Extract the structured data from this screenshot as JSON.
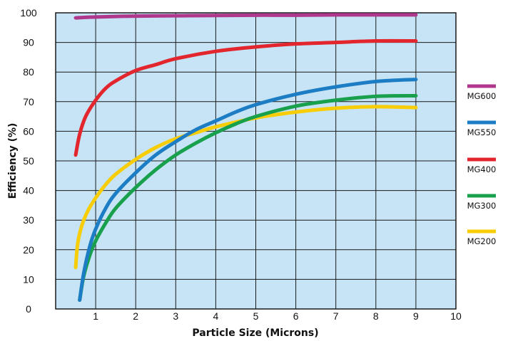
{
  "chart_data": {
    "type": "line",
    "title": "",
    "xlabel": "Particle Size (Microns)",
    "ylabel": "Efficiency (%)",
    "xlim": [
      0,
      10
    ],
    "ylim": [
      0,
      100
    ],
    "x_ticks": [
      "1",
      "2",
      "3",
      "4",
      "5",
      "6",
      "7",
      "8",
      "9",
      "10"
    ],
    "y_ticks": [
      "0",
      "10",
      "20",
      "30",
      "40",
      "50",
      "60",
      "70",
      "80",
      "90",
      "100"
    ],
    "grid": true,
    "plot_background": "#c6e4f5",
    "legend_position": "right",
    "series": [
      {
        "name": "MG600",
        "color": "#b0388c",
        "points": [
          [
            0.5,
            98.3
          ],
          [
            1,
            98.6
          ],
          [
            2,
            98.9
          ],
          [
            3,
            99.0
          ],
          [
            4,
            99.1
          ],
          [
            5,
            99.2
          ],
          [
            6,
            99.2
          ],
          [
            7,
            99.3
          ],
          [
            8,
            99.3
          ],
          [
            9,
            99.3
          ]
        ]
      },
      {
        "name": "MG550",
        "color": "#1c7cc4",
        "points": [
          [
            0.6,
            3
          ],
          [
            0.7,
            12
          ],
          [
            0.85,
            21
          ],
          [
            1,
            27
          ],
          [
            1.25,
            34
          ],
          [
            1.5,
            39
          ],
          [
            2,
            46
          ],
          [
            2.5,
            52
          ],
          [
            3,
            56.5
          ],
          [
            3.5,
            60.5
          ],
          [
            4,
            63.5
          ],
          [
            4.5,
            66.5
          ],
          [
            5,
            69
          ],
          [
            6,
            72.5
          ],
          [
            7,
            75
          ],
          [
            8,
            76.8
          ],
          [
            9,
            77.5
          ]
        ]
      },
      {
        "name": "MG400",
        "color": "#e3262e",
        "points": [
          [
            0.5,
            52
          ],
          [
            0.6,
            59
          ],
          [
            0.75,
            65
          ],
          [
            1,
            70.5
          ],
          [
            1.25,
            74.5
          ],
          [
            1.5,
            77
          ],
          [
            2,
            80.5
          ],
          [
            2.5,
            82.5
          ],
          [
            3,
            84.5
          ],
          [
            4,
            87
          ],
          [
            5,
            88.5
          ],
          [
            6,
            89.5
          ],
          [
            7,
            90
          ],
          [
            8,
            90.5
          ],
          [
            9,
            90.5
          ]
        ]
      },
      {
        "name": "MG300",
        "color": "#18a04c",
        "points": [
          [
            0.6,
            3
          ],
          [
            0.7,
            11
          ],
          [
            0.85,
            18
          ],
          [
            1,
            23
          ],
          [
            1.25,
            29
          ],
          [
            1.5,
            34
          ],
          [
            2,
            41
          ],
          [
            2.5,
            47
          ],
          [
            3,
            52
          ],
          [
            3.5,
            56
          ],
          [
            4,
            59.5
          ],
          [
            4.5,
            62.5
          ],
          [
            5,
            65
          ],
          [
            6,
            68.5
          ],
          [
            7,
            70.5
          ],
          [
            8,
            71.8
          ],
          [
            9,
            72
          ]
        ]
      },
      {
        "name": "MG200",
        "color": "#f7cd07",
        "points": [
          [
            0.5,
            14
          ],
          [
            0.55,
            22
          ],
          [
            0.65,
            28
          ],
          [
            0.8,
            33
          ],
          [
            1,
            37.5
          ],
          [
            1.25,
            42
          ],
          [
            1.5,
            45.5
          ],
          [
            2,
            50.5
          ],
          [
            2.5,
            54.5
          ],
          [
            3,
            57.5
          ],
          [
            3.5,
            59.5
          ],
          [
            4,
            61.5
          ],
          [
            5,
            64.5
          ],
          [
            6,
            66.5
          ],
          [
            7,
            67.8
          ],
          [
            8,
            68.3
          ],
          [
            9,
            68
          ]
        ]
      }
    ]
  }
}
